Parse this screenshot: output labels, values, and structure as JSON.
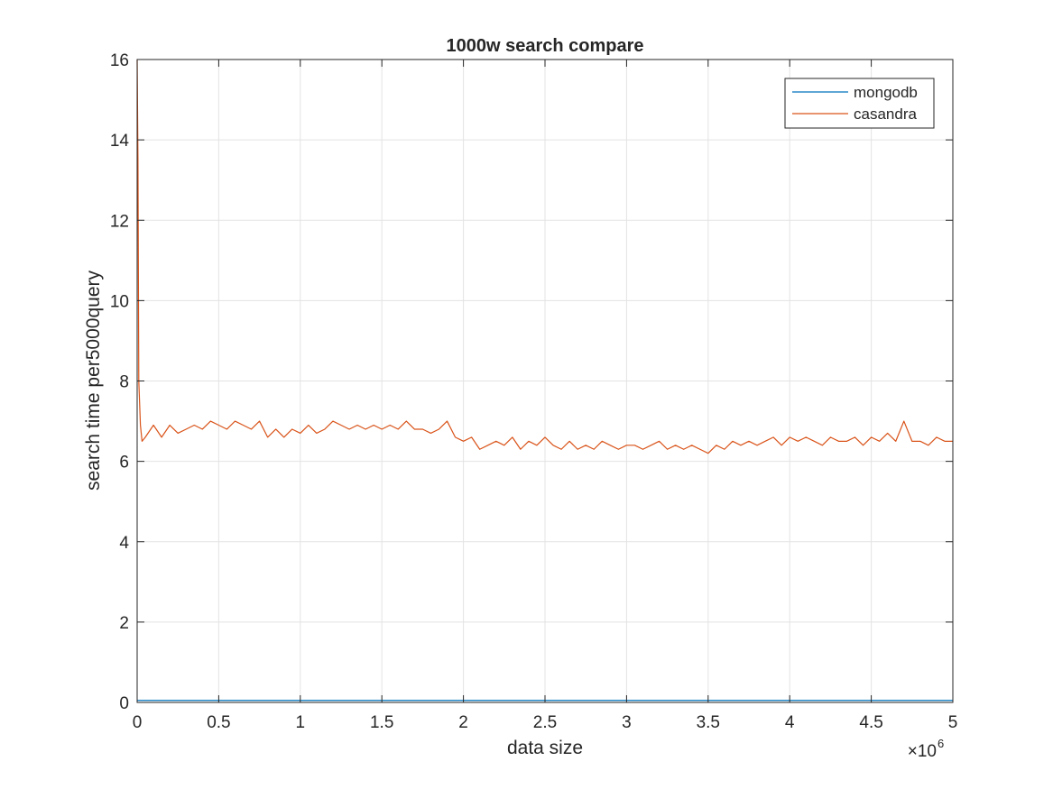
{
  "chart_data": {
    "type": "line",
    "title": "1000w search compare",
    "xlabel": "data size",
    "ylabel": "search time per5000query",
    "x_exponent_label": "×10",
    "x_exponent_power": "6",
    "xlim": [
      0,
      5000000
    ],
    "ylim": [
      0,
      16
    ],
    "x_ticks": [
      0,
      500000,
      1000000,
      1500000,
      2000000,
      2500000,
      3000000,
      3500000,
      4000000,
      4500000,
      5000000
    ],
    "x_tick_labels": [
      "0",
      "0.5",
      "1",
      "1.5",
      "2",
      "2.5",
      "3",
      "3.5",
      "4",
      "4.5",
      "5"
    ],
    "y_ticks": [
      0,
      2,
      4,
      6,
      8,
      10,
      12,
      14,
      16
    ],
    "y_tick_labels": [
      "0",
      "2",
      "4",
      "6",
      "8",
      "10",
      "12",
      "14",
      "16"
    ],
    "grid": true,
    "legend_position": "top-right",
    "series": [
      {
        "name": "mongodb",
        "color": "#0072BD",
        "x": [
          0,
          250000,
          500000,
          750000,
          1000000,
          1250000,
          1500000,
          1750000,
          2000000,
          2250000,
          2500000,
          2750000,
          3000000,
          3250000,
          3500000,
          3750000,
          4000000,
          4250000,
          4500000,
          4750000,
          5000000
        ],
        "y": [
          0.05,
          0.05,
          0.05,
          0.05,
          0.05,
          0.05,
          0.05,
          0.05,
          0.05,
          0.05,
          0.05,
          0.05,
          0.05,
          0.05,
          0.05,
          0.05,
          0.05,
          0.05,
          0.05,
          0.05,
          0.05
        ]
      },
      {
        "name": "casandra",
        "color": "#D95319",
        "x": [
          0,
          5000,
          10000,
          20000,
          30000,
          50000,
          100000,
          150000,
          200000,
          250000,
          300000,
          350000,
          400000,
          450000,
          500000,
          550000,
          600000,
          650000,
          700000,
          750000,
          800000,
          850000,
          900000,
          950000,
          1000000,
          1050000,
          1100000,
          1150000,
          1200000,
          1250000,
          1300000,
          1350000,
          1400000,
          1450000,
          1500000,
          1550000,
          1600000,
          1650000,
          1700000,
          1750000,
          1800000,
          1850000,
          1900000,
          1950000,
          2000000,
          2050000,
          2100000,
          2150000,
          2200000,
          2250000,
          2300000,
          2350000,
          2400000,
          2450000,
          2500000,
          2550000,
          2600000,
          2650000,
          2700000,
          2750000,
          2800000,
          2850000,
          2900000,
          2950000,
          3000000,
          3050000,
          3100000,
          3150000,
          3200000,
          3250000,
          3300000,
          3350000,
          3400000,
          3450000,
          3500000,
          3550000,
          3600000,
          3650000,
          3700000,
          3750000,
          3800000,
          3850000,
          3900000,
          3950000,
          4000000,
          4050000,
          4100000,
          4150000,
          4200000,
          4250000,
          4300000,
          4350000,
          4400000,
          4450000,
          4500000,
          4550000,
          4600000,
          4650000,
          4700000,
          4750000,
          4800000,
          4850000,
          4900000,
          4950000,
          5000000
        ],
        "y": [
          16,
          13.5,
          8.0,
          6.9,
          6.5,
          6.6,
          6.9,
          6.6,
          6.9,
          6.7,
          6.8,
          6.9,
          6.8,
          7.0,
          6.9,
          6.8,
          7.0,
          6.9,
          6.8,
          7.0,
          6.6,
          6.8,
          6.6,
          6.8,
          6.7,
          6.9,
          6.7,
          6.8,
          7.0,
          6.9,
          6.8,
          6.9,
          6.8,
          6.9,
          6.8,
          6.9,
          6.8,
          7.0,
          6.8,
          6.8,
          6.7,
          6.8,
          7.0,
          6.6,
          6.5,
          6.6,
          6.3,
          6.4,
          6.5,
          6.4,
          6.6,
          6.3,
          6.5,
          6.4,
          6.6,
          6.4,
          6.3,
          6.5,
          6.3,
          6.4,
          6.3,
          6.5,
          6.4,
          6.3,
          6.4,
          6.4,
          6.3,
          6.4,
          6.5,
          6.3,
          6.4,
          6.3,
          6.4,
          6.3,
          6.2,
          6.4,
          6.3,
          6.5,
          6.4,
          6.5,
          6.4,
          6.5,
          6.6,
          6.4,
          6.6,
          6.5,
          6.6,
          6.5,
          6.4,
          6.6,
          6.5,
          6.5,
          6.6,
          6.4,
          6.6,
          6.5,
          6.7,
          6.5,
          7.0,
          6.5,
          6.5,
          6.4,
          6.6,
          6.5,
          6.5
        ]
      }
    ]
  }
}
